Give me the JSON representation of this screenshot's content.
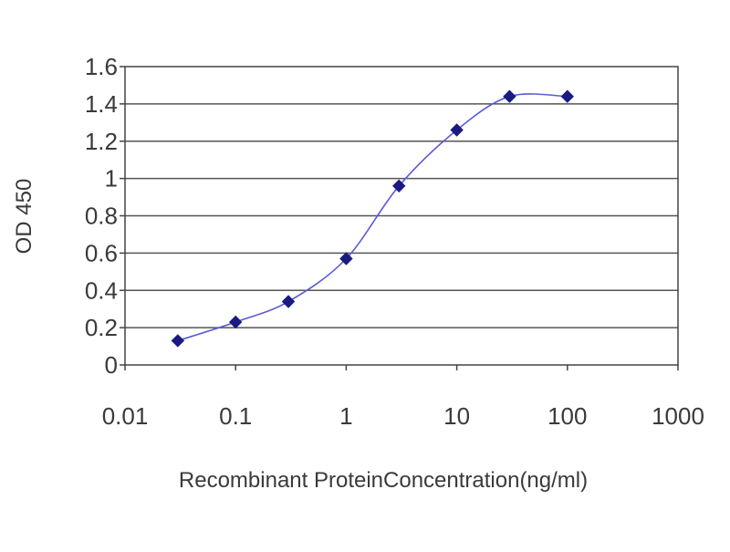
{
  "chart_data": {
    "type": "line",
    "title": "",
    "xlabel": "Recombinant ProteinConcentration(ng/ml)",
    "ylabel": "OD 450",
    "x_scale": "log",
    "xlim": [
      0.01,
      1000
    ],
    "ylim": [
      0,
      1.6
    ],
    "x_ticks": [
      "0.01",
      "0.1",
      "1",
      "10",
      "100",
      "1000"
    ],
    "y_ticks": [
      "0",
      "0.2",
      "0.4",
      "0.6",
      "0.8",
      "1",
      "1.2",
      "1.4",
      "1.6"
    ],
    "grid": true,
    "legend": "none",
    "series": [
      {
        "x": [
          0.03,
          0.1,
          0.3,
          1,
          3,
          10,
          30,
          100
        ],
        "y": [
          0.13,
          0.23,
          0.34,
          0.57,
          0.96,
          1.26,
          1.44,
          1.44
        ]
      }
    ],
    "colors": {
      "line": "#5b5bd6",
      "marker": "#1a1a80",
      "grid": "#555555",
      "axis": "#444444",
      "plot_background": "#ffffff"
    }
  }
}
